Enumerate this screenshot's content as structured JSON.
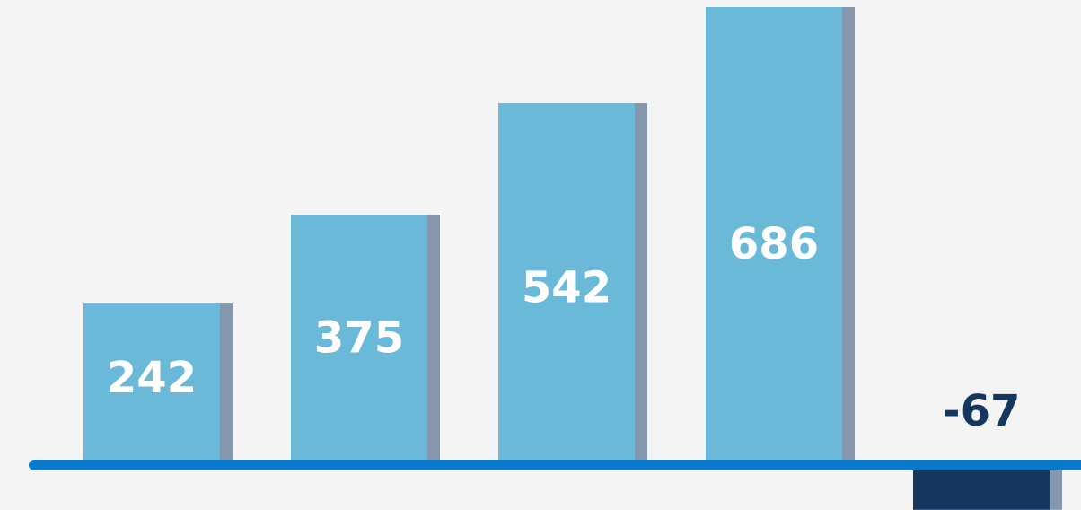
{
  "chart_data": {
    "type": "bar",
    "categories": [
      "",
      "",
      "",
      "",
      ""
    ],
    "values": [
      242,
      375,
      542,
      686,
      -67
    ],
    "title": "",
    "xlabel": "",
    "ylabel": "",
    "ylim": [
      -100,
      700
    ],
    "grid": false,
    "legend": "none",
    "data_labels": [
      "242",
      "375",
      "542",
      "686",
      "-67"
    ]
  },
  "colors": {
    "background": "#f4f4f4",
    "positive_bar": "#6ab9d8",
    "positive_bar_shadow": "#8497ad",
    "negative_bar": "#14365f",
    "negative_bar_shadow": "#8497ad",
    "baseline": "#0a79c9",
    "label_on_bar": "#ffffff",
    "label_negative": "#14365f"
  }
}
